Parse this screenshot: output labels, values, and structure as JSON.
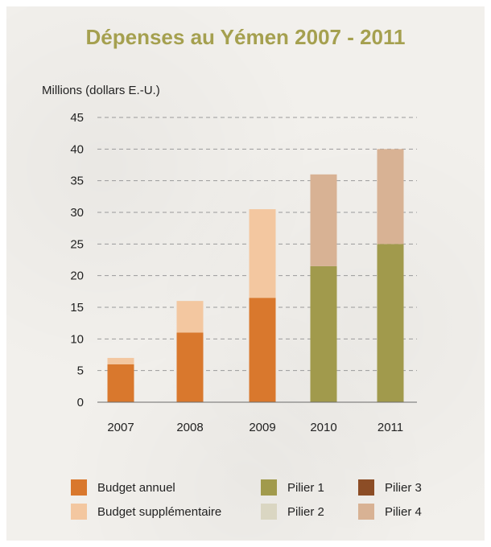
{
  "chart_data": {
    "type": "bar",
    "stacked": true,
    "title": "Dépenses au Yémen 2007 - 2011",
    "ylabel": "Millions (dollars E.-U.)",
    "xlabel": "",
    "ylim": [
      0,
      45
    ],
    "yticks": [
      0,
      5,
      10,
      15,
      20,
      25,
      30,
      35,
      40,
      45
    ],
    "grid": true,
    "categories": [
      "2007",
      "2008",
      "2009",
      "2010",
      "2011"
    ],
    "series": [
      {
        "name": "Budget annuel",
        "color": "#d9782d",
        "values": [
          6,
          11,
          16.5,
          0,
          0
        ]
      },
      {
        "name": "Budget supplémentaire",
        "color": "#f3c7a0",
        "values": [
          1,
          5,
          14,
          0,
          0
        ]
      },
      {
        "name": "Pilier 1",
        "color": "#a19a4c",
        "values": [
          0,
          0,
          0,
          21.5,
          25
        ]
      },
      {
        "name": "Pilier 2",
        "color": "#dad6c2",
        "values": [
          0,
          0,
          0,
          0,
          0
        ]
      },
      {
        "name": "Pilier 3",
        "color": "#8c4d26",
        "values": [
          0,
          0,
          0,
          0,
          0
        ]
      },
      {
        "name": "Pilier 4",
        "color": "#d8b294",
        "values": [
          0,
          0,
          0,
          14.5,
          15
        ]
      }
    ],
    "legend_position": "bottom",
    "title_color": "#a5a04f"
  }
}
